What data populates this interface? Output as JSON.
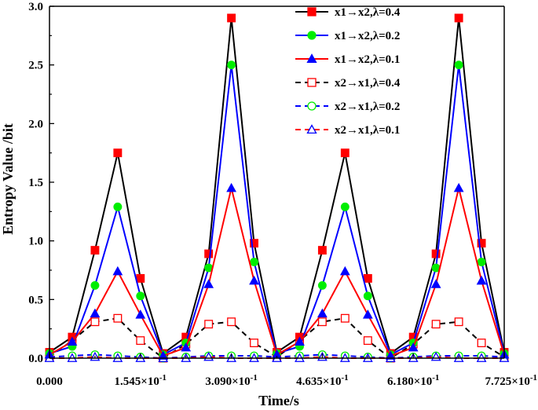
{
  "chart_data": {
    "type": "line",
    "title": "",
    "xlabel": "Time/s",
    "ylabel": "Entropy Value /bit",
    "xlim": [
      0,
      0.7725
    ],
    "ylim": [
      0,
      3.0
    ],
    "grid": false,
    "legend_position": "top-right",
    "x_ticks": [
      0,
      0.1545,
      0.309,
      0.4635,
      0.618,
      0.7725
    ],
    "x_tick_labels": [
      "0.000",
      "1.545×10",
      "3.090×10",
      "4.635×10",
      "6.180×10",
      "7.725×10"
    ],
    "x_tick_exponent": "-1",
    "y_ticks": [
      0,
      0.5,
      1.0,
      1.5,
      2.0,
      2.5,
      3.0
    ],
    "y_tick_labels": [
      "0.0",
      "0.5",
      "1.0",
      "1.5",
      "2.0",
      "2.5",
      "3.0"
    ],
    "x": [
      0,
      0.0386,
      0.0773,
      0.1159,
      0.1545,
      0.1931,
      0.2318,
      0.2704,
      0.309,
      0.3476,
      0.3863,
      0.4249,
      0.4635,
      0.5021,
      0.5408,
      0.5794,
      0.618,
      0.6566,
      0.6953,
      0.7339,
      0.7725
    ],
    "series": [
      {
        "name": "x1→x2,λ=0.4",
        "color": "#000000",
        "marker_color": "#ff0000",
        "marker": "square",
        "filled": true,
        "dashed": false,
        "values": [
          0.05,
          0.18,
          0.92,
          1.75,
          0.68,
          0.04,
          0.18,
          0.89,
          2.9,
          0.98,
          0.05,
          0.18,
          0.92,
          1.75,
          0.68,
          0.04,
          0.18,
          0.89,
          2.9,
          0.98,
          0.05
        ]
      },
      {
        "name": "x1→x2,λ=0.2",
        "color": "#0000ff",
        "marker_color": "#00ee00",
        "marker": "circle",
        "filled": true,
        "dashed": false,
        "values": [
          0.04,
          0.1,
          0.62,
          1.29,
          0.53,
          0.03,
          0.13,
          0.77,
          2.5,
          0.82,
          0.04,
          0.1,
          0.62,
          1.29,
          0.53,
          0.03,
          0.13,
          0.77,
          2.5,
          0.82,
          0.04
        ]
      },
      {
        "name": "x1→x2,λ=0.1",
        "color": "#ff0000",
        "marker_color": "#0000ff",
        "marker": "triangle",
        "filled": true,
        "dashed": false,
        "values": [
          0.03,
          0.14,
          0.38,
          0.74,
          0.37,
          0.02,
          0.09,
          0.63,
          1.45,
          0.66,
          0.03,
          0.14,
          0.38,
          0.74,
          0.37,
          0.02,
          0.09,
          0.63,
          1.45,
          0.66,
          0.03
        ]
      },
      {
        "name": "x2→x1,λ=0.4",
        "color": "#000000",
        "marker_color": "#ff0000",
        "marker": "square",
        "filled": false,
        "dashed": true,
        "values": [
          0.01,
          0.15,
          0.31,
          0.34,
          0.15,
          0.0,
          0.12,
          0.29,
          0.31,
          0.13,
          0.01,
          0.15,
          0.31,
          0.34,
          0.15,
          0.0,
          0.12,
          0.29,
          0.31,
          0.13,
          0.01
        ]
      },
      {
        "name": "x2→x1,λ=0.2",
        "color": "#0000ff",
        "marker_color": "#00ee00",
        "marker": "circle",
        "filled": false,
        "dashed": true,
        "values": [
          0.01,
          0.02,
          0.03,
          0.02,
          0.01,
          0.0,
          0.01,
          0.02,
          0.02,
          0.02,
          0.01,
          0.02,
          0.03,
          0.02,
          0.01,
          0.0,
          0.01,
          0.02,
          0.02,
          0.02,
          0.01
        ]
      },
      {
        "name": "x2→x1,λ=0.1",
        "color": "#ff0000",
        "marker_color": "#0000ff",
        "marker": "triangle",
        "filled": false,
        "dashed": true,
        "values": [
          0.0,
          0.0,
          0.01,
          0.0,
          0.0,
          0.0,
          0.0,
          0.01,
          0.0,
          0.0,
          0.0,
          0.0,
          0.01,
          0.0,
          0.0,
          0.0,
          0.0,
          0.01,
          0.0,
          0.0,
          0.0
        ]
      }
    ]
  }
}
